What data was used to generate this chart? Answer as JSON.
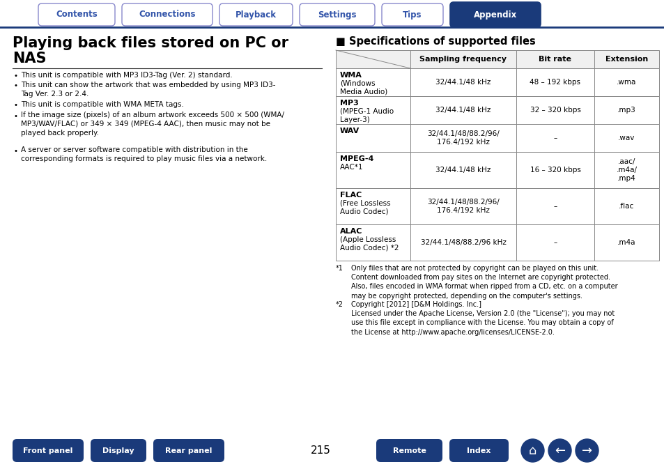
{
  "tab_labels": [
    "Contents",
    "Connections",
    "Playback",
    "Settings",
    "Tips",
    "Appendix"
  ],
  "tab_active": "Appendix",
  "tab_active_color": "#1a3a7a",
  "tab_inactive_color": "#ffffff",
  "tab_text_color_active": "#ffffff",
  "tab_text_color_inactive": "#3355aa",
  "tab_border_color": "#8888cc",
  "title_line1": "Playing back files stored on PC or",
  "title_line2": "NAS",
  "section_title": "■ Specifications of supported files",
  "left_bullets": [
    "This unit is compatible with MP3 ID3-Tag (Ver. 2) standard.",
    "This unit can show the artwork that was embedded by using MP3 ID3-\nTag Ver. 2.3 or 2.4.",
    "This unit is compatible with WMA META tags.",
    "If the image size (pixels) of an album artwork exceeds 500 × 500 (WMA/\nMP3/WAV/FLAC) or 349 × 349 (MPEG-4 AAC), then music may not be\nplayed back properly.",
    "A server or server software compatible with distribution in the\ncorresponding formats is required to play music files via a network."
  ],
  "table_headers": [
    "",
    "Sampling frequency",
    "Bit rate",
    "Extension"
  ],
  "table_rows": [
    {
      "format_bold": "WMA",
      "format_sub": "(Windows\nMedia Audio)",
      "sampling": "32/44.1/48 kHz",
      "bitrate": "48 – 192 kbps",
      "extension": ".wma"
    },
    {
      "format_bold": "MP3",
      "format_sub": "(MPEG-1 Audio\nLayer-3)",
      "sampling": "32/44.1/48 kHz",
      "bitrate": "32 – 320 kbps",
      "extension": ".mp3"
    },
    {
      "format_bold": "WAV",
      "format_sub": "",
      "sampling": "32/44.1/48/88.2/96/\n176.4/192 kHz",
      "bitrate": "–",
      "extension": ".wav"
    },
    {
      "format_bold": "MPEG-4",
      "format_sub": "AAC*1",
      "sampling": "32/44.1/48 kHz",
      "bitrate": "16 – 320 kbps",
      "extension": ".aac/\n.m4a/\n.mp4"
    },
    {
      "format_bold": "FLAC",
      "format_sub": "(Free Lossless\nAudio Codec)",
      "sampling": "32/44.1/48/88.2/96/\n176.4/192 kHz",
      "bitrate": "–",
      "extension": ".flac"
    },
    {
      "format_bold": "ALAC",
      "format_sub": "(Apple Lossless\nAudio Codec) *2",
      "sampling": "32/44.1/48/88.2/96 kHz",
      "bitrate": "–",
      "extension": ".m4a"
    }
  ],
  "footnote1_star": "*1",
  "footnote1_lines": [
    "Only files that are not protected by copyright can be played on this unit.",
    "Content downloaded from pay sites on the Internet are copyright protected.",
    "Also, files encoded in WMA format when ripped from a CD, etc. on a computer",
    "may be copyright protected, depending on the computer's settings."
  ],
  "footnote2_star": "*2",
  "footnote2_lines": [
    "Copyright [2012] [D&M Holdings. Inc.]",
    "Licensed under the Apache License, Version 2.0 (the \"License\"); you may not",
    "use this file except in compliance with the License. You may obtain a copy of",
    "the License at http://www.apache.org/licenses/LICENSE-2.0."
  ],
  "bottom_buttons": [
    "Front panel",
    "Display",
    "Rear panel",
    "Remote",
    "Index"
  ],
  "page_number": "215",
  "bg_color": "#ffffff",
  "dark_blue": "#1a3a7a",
  "border_blue": "#8888cc",
  "tab_line_color": "#1a3a7a"
}
